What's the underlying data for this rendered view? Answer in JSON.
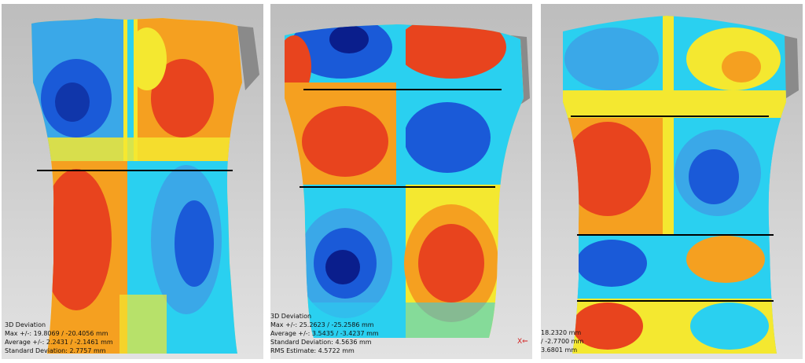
{
  "panels": [
    {
      "readout": {
        "title": "3D Deviation",
        "max": "Max +/-: 19.8069 / -20.4056 mm",
        "average": "Average +/-: 2.2431 / -2.1461 mm",
        "std": "Standard Deviation: 2.7757 mm"
      }
    },
    {
      "readout": {
        "title": "3D Deviation",
        "max": "Max +/-: 25.2623 / -25.2586 mm",
        "average": "Average +/-: 3.5435 / -3.4237 mm",
        "std": "Standard Deviation: 4.5636 mm",
        "rms": "RMS Estimate: 4.5722 mm"
      },
      "axis_label": "X"
    },
    {
      "readout": {
        "max": "18.2320 mm",
        "average": "/ -2.7700 mm",
        "std": "3.6801 mm"
      }
    }
  ],
  "colors": {
    "background": "#c9c9c9",
    "red": "#e8441e",
    "orange": "#f5a020",
    "yellow": "#f4e830",
    "cyan": "#2ad0f0",
    "light_blue": "#3aa8e8",
    "blue": "#1a5ad8",
    "dark_blue": "#0a1e8c",
    "section_line": "#000000"
  }
}
